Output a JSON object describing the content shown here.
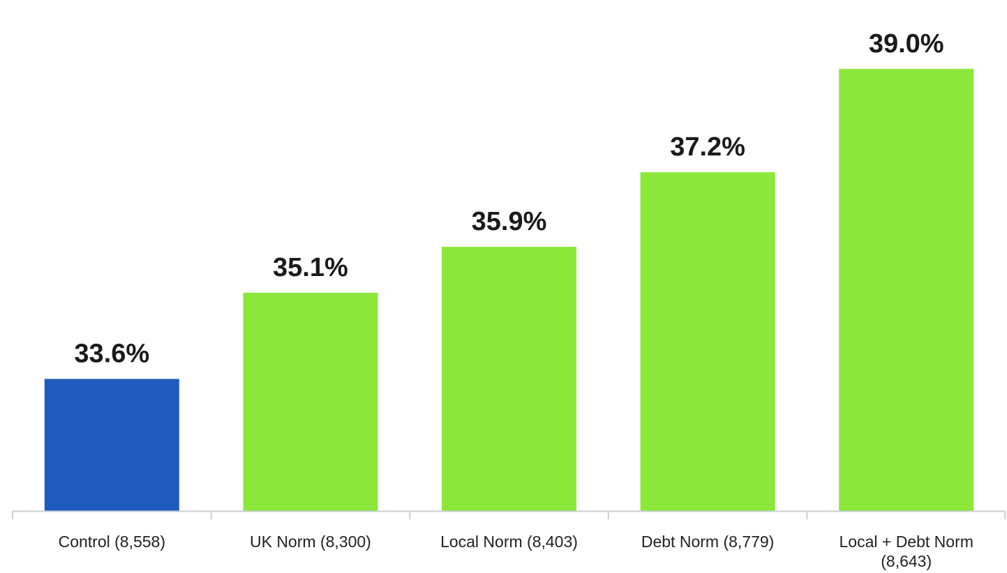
{
  "chart_data": {
    "type": "bar",
    "categories": [
      [
        "Control (8,558)"
      ],
      [
        "UK Norm (8,300)"
      ],
      [
        "Local Norm (8,403)"
      ],
      [
        "Debt Norm (8,779)"
      ],
      [
        "Local + Debt Norm",
        "(8,643)"
      ]
    ],
    "values": [
      33.6,
      35.1,
      35.9,
      37.2,
      39.0
    ],
    "value_labels": [
      "33.6%",
      "35.1%",
      "35.9%",
      "37.2%",
      "39.0%"
    ],
    "title": "",
    "xlabel": "",
    "ylabel": "",
    "ylim": [
      31.3,
      39.35
    ],
    "grid": false,
    "colors": [
      "#1f5bbf",
      "#8be83b",
      "#8be83b",
      "#8be83b",
      "#8be83b"
    ],
    "axis_color": "#c8d0d4"
  }
}
